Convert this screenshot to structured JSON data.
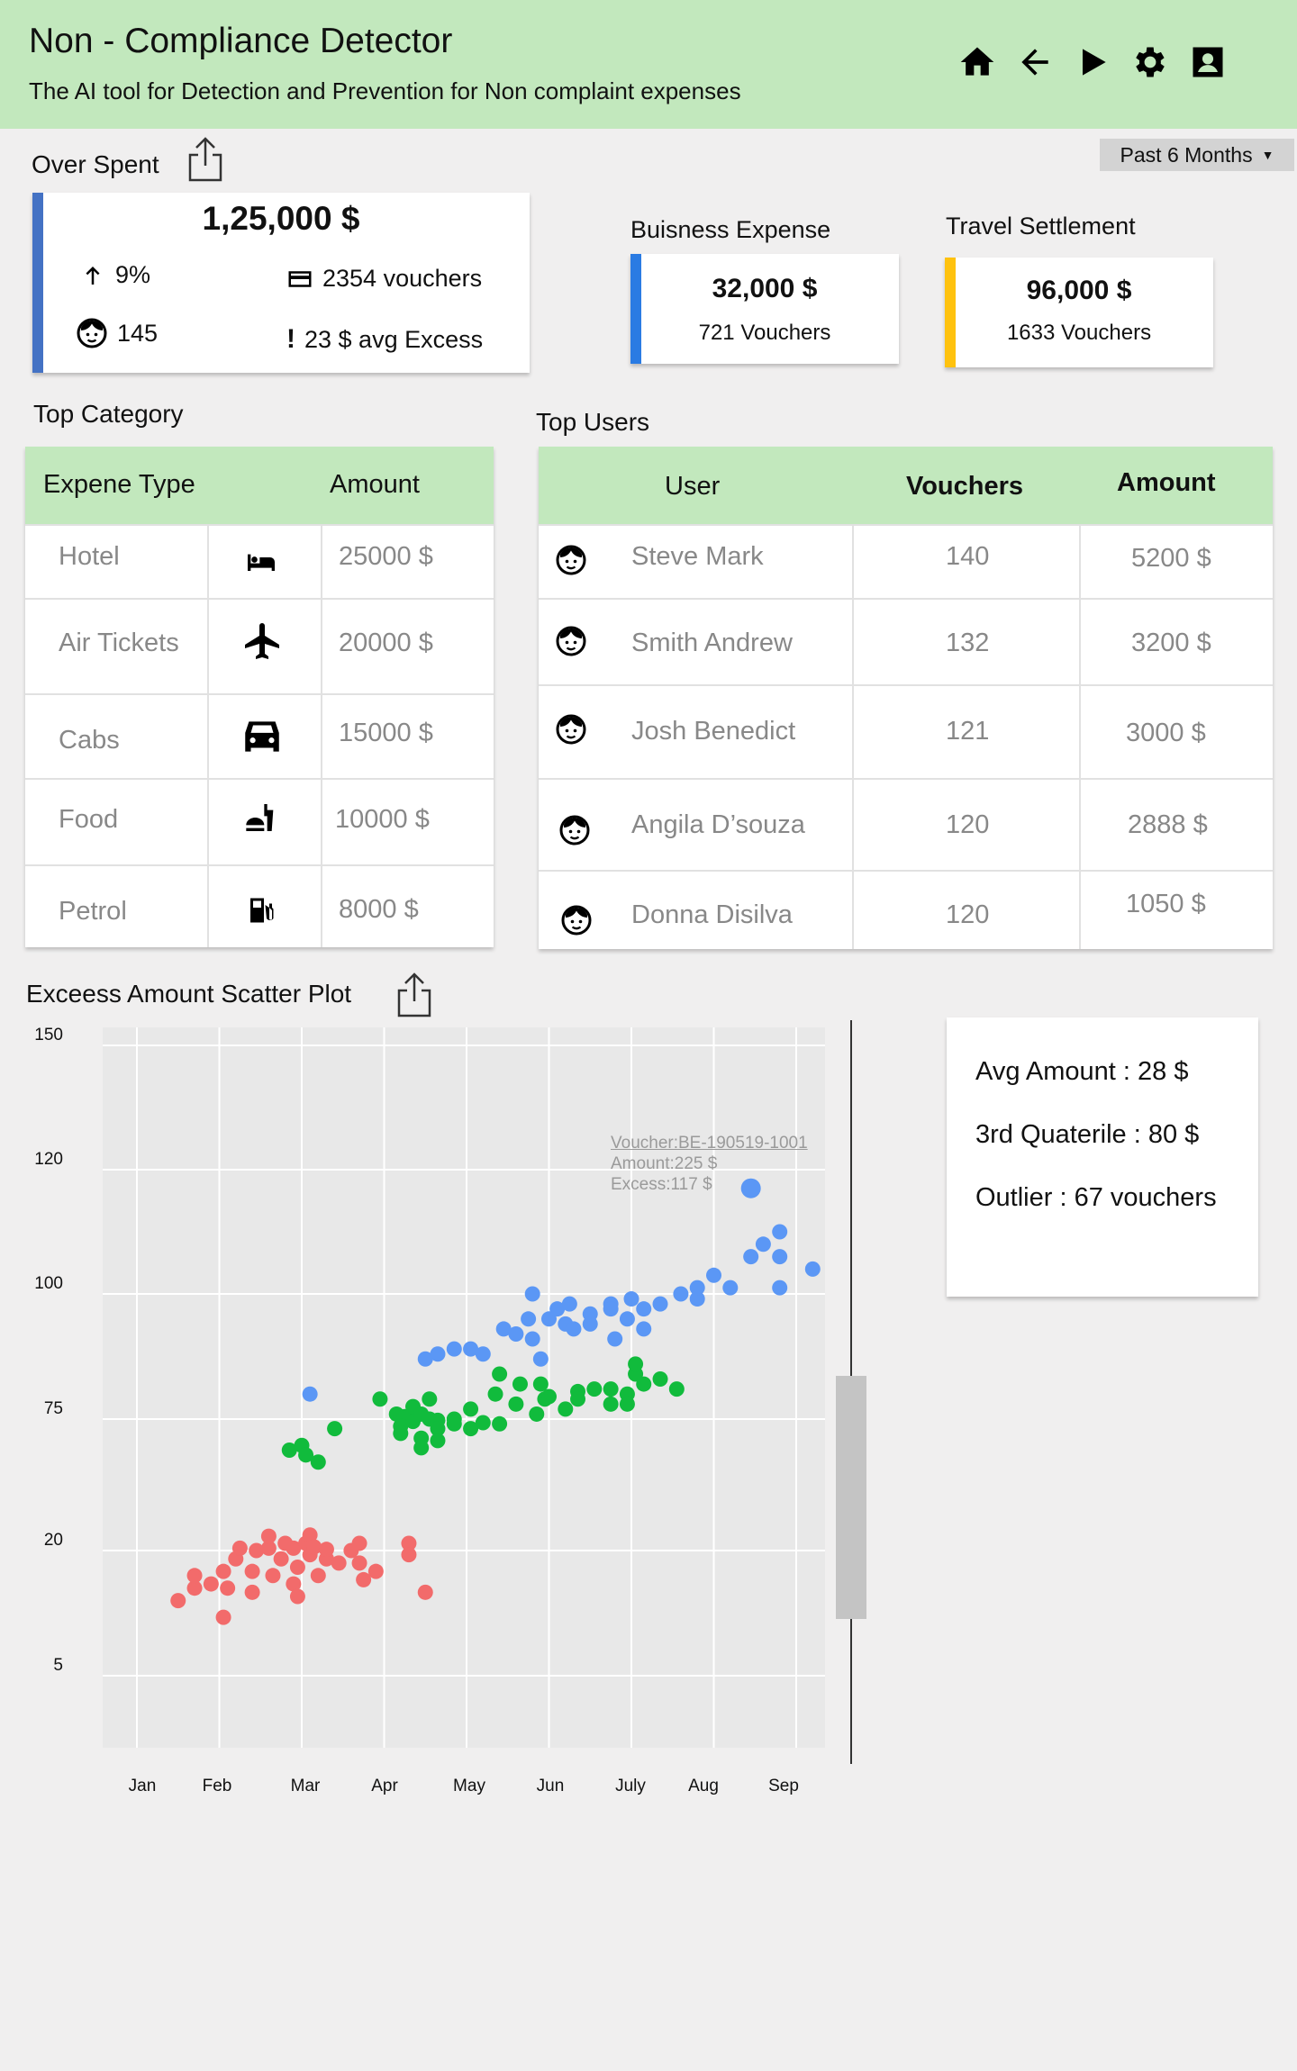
{
  "header": {
    "title": "Non - Compliance Detector",
    "subtitle": "The AI tool for Detection and Prevention for Non complaint expenses",
    "nav": [
      "home-icon",
      "back-arrow-icon",
      "play-icon",
      "gear-icon",
      "profile-icon"
    ]
  },
  "period": {
    "label": "Past 6 Months"
  },
  "overspent": {
    "label": "Over Spent",
    "total": "1,25,000 $",
    "growth": "9%",
    "vouchers": "2354 vouchers",
    "users": "145",
    "avg_excess": "23 $ avg Excess"
  },
  "business": {
    "label": "Buisness Expense",
    "amount": "32,000 $",
    "vouchers": "721 Vouchers",
    "color": "#2a7be3"
  },
  "travel": {
    "label": "Travel Settlement",
    "amount": "96,000 $",
    "vouchers": "1633 Vouchers",
    "color": "#ffc20e"
  },
  "top_category": {
    "label": "Top Category",
    "headers": [
      "Expene Type",
      "Amount"
    ],
    "rows": [
      {
        "type": "Hotel",
        "icon": "hotel-icon",
        "amount": "25000 $"
      },
      {
        "type": "Air Tickets",
        "icon": "airplane-icon",
        "amount": "20000 $"
      },
      {
        "type": "Cabs",
        "icon": "car-icon",
        "amount": "15000 $"
      },
      {
        "type": "Food",
        "icon": "food-icon",
        "amount": "10000 $"
      },
      {
        "type": "Petrol",
        "icon": "fuel-icon",
        "amount": "8000 $"
      }
    ]
  },
  "top_users": {
    "label": "Top Users",
    "headers": [
      "User",
      "Vouchers",
      "Amount"
    ],
    "rows": [
      {
        "name": "Steve Mark",
        "vouchers": "140",
        "amount": "5200 $"
      },
      {
        "name": "Smith Andrew",
        "vouchers": "132",
        "amount": "3200 $"
      },
      {
        "name": "Josh Benedict",
        "vouchers": "121",
        "amount": "3000 $"
      },
      {
        "name": "Angila D’souza",
        "vouchers": "120",
        "amount": "2888 $"
      },
      {
        "name": "Donna Disilva",
        "vouchers": "120",
        "amount": "1050 $"
      }
    ]
  },
  "scatter": {
    "label": "Exceess Amount Scatter Plot",
    "tooltip": {
      "voucher": "Voucher:BE-190519-1001",
      "amount": "Amount:225 $",
      "excess": "Excess:117 $"
    }
  },
  "summary": {
    "avg": "Avg Amount : 28 $",
    "quartile": "3rd Quaterile : 80 $",
    "outlier": "Outlier : 67 vouchers"
  },
  "chart_data": {
    "type": "scatter",
    "title": "Exceess Amount Scatter Plot",
    "xlabel": "",
    "ylabel": "",
    "x_categories": [
      "Jan",
      "Feb",
      "Mar",
      "Apr",
      "May",
      "Jun",
      "July",
      "Aug",
      "Sep"
    ],
    "y_ticks": [
      "150",
      "120",
      "100",
      "75",
      "20",
      "5"
    ],
    "grid": true,
    "series": [
      {
        "color": "#f26b6b",
        "points": [
          [
            0.5,
            14
          ],
          [
            0.7,
            15.5
          ],
          [
            0.7,
            17
          ],
          [
            0.9,
            16
          ],
          [
            1.05,
            17.5
          ],
          [
            1.05,
            12
          ],
          [
            1.1,
            15.5
          ],
          [
            1.2,
            19
          ],
          [
            1.25,
            21
          ],
          [
            1.4,
            15
          ],
          [
            1.4,
            17.5
          ],
          [
            1.45,
            20
          ],
          [
            1.6,
            21
          ],
          [
            1.6,
            26
          ],
          [
            1.65,
            17
          ],
          [
            1.75,
            19
          ],
          [
            1.8,
            23
          ],
          [
            1.9,
            16
          ],
          [
            1.9,
            21
          ],
          [
            1.95,
            18
          ],
          [
            1.95,
            14.5
          ],
          [
            2.05,
            23
          ],
          [
            2.1,
            26.5
          ],
          [
            2.1,
            19.5
          ],
          [
            2.15,
            21.5
          ],
          [
            2.2,
            17
          ],
          [
            2.3,
            19
          ],
          [
            2.3,
            20.5
          ],
          [
            2.45,
            18.5
          ],
          [
            2.6,
            20
          ],
          [
            2.7,
            23
          ],
          [
            2.7,
            18.5
          ],
          [
            2.75,
            16.5
          ],
          [
            2.9,
            17.5
          ],
          [
            3.3,
            23
          ],
          [
            3.3,
            19.5
          ],
          [
            3.5,
            15
          ]
        ]
      },
      {
        "color": "#11bb3c",
        "points": [
          [
            1.85,
            62
          ],
          [
            2.0,
            64
          ],
          [
            2.05,
            60
          ],
          [
            2.2,
            57
          ],
          [
            2.4,
            71
          ],
          [
            2.95,
            79
          ],
          [
            3.15,
            76
          ],
          [
            3.25,
            75.5
          ],
          [
            3.2,
            72
          ],
          [
            3.2,
            69
          ],
          [
            3.35,
            77.5
          ],
          [
            3.35,
            74
          ],
          [
            3.45,
            76
          ],
          [
            3.55,
            79
          ],
          [
            3.55,
            75
          ],
          [
            3.65,
            74.5
          ],
          [
            3.65,
            71
          ],
          [
            3.45,
            67
          ],
          [
            3.45,
            63
          ],
          [
            3.65,
            66
          ],
          [
            3.85,
            75
          ],
          [
            3.85,
            73
          ],
          [
            4.05,
            77
          ],
          [
            4.05,
            71
          ],
          [
            4.2,
            73.5
          ],
          [
            4.4,
            73
          ],
          [
            4.35,
            80
          ],
          [
            4.4,
            84
          ],
          [
            4.65,
            82
          ],
          [
            4.6,
            78
          ],
          [
            4.95,
            79
          ],
          [
            4.85,
            76
          ],
          [
            4.9,
            82
          ],
          [
            5.0,
            79.5
          ],
          [
            5.2,
            77
          ],
          [
            5.35,
            80.5
          ],
          [
            5.35,
            79
          ],
          [
            5.55,
            81
          ],
          [
            5.75,
            81
          ],
          [
            5.75,
            78
          ],
          [
            5.95,
            80
          ],
          [
            5.95,
            78
          ],
          [
            6.05,
            84
          ],
          [
            6.05,
            86
          ],
          [
            6.15,
            82
          ],
          [
            6.35,
            83
          ],
          [
            6.55,
            81
          ]
        ]
      },
      {
        "color": "#5b97f5",
        "points": [
          [
            2.1,
            80
          ],
          [
            3.5,
            87
          ],
          [
            3.65,
            88
          ],
          [
            3.85,
            89
          ],
          [
            4.05,
            89
          ],
          [
            4.2,
            88
          ],
          [
            4.45,
            93
          ],
          [
            4.6,
            92
          ],
          [
            4.75,
            95
          ],
          [
            4.8,
            100
          ],
          [
            4.8,
            91
          ],
          [
            4.9,
            87
          ],
          [
            5.0,
            95
          ],
          [
            5.1,
            97
          ],
          [
            5.2,
            94
          ],
          [
            5.25,
            98
          ],
          [
            5.3,
            93
          ],
          [
            5.5,
            96
          ],
          [
            5.5,
            94
          ],
          [
            5.75,
            98
          ],
          [
            5.75,
            97
          ],
          [
            5.8,
            91
          ],
          [
            5.95,
            95
          ],
          [
            6.0,
            99
          ],
          [
            6.15,
            93
          ],
          [
            6.15,
            97
          ],
          [
            6.35,
            98
          ],
          [
            6.6,
            100
          ],
          [
            6.8,
            99
          ],
          [
            6.8,
            101
          ],
          [
            7.0,
            103
          ],
          [
            7.2,
            101
          ],
          [
            7.45,
            106
          ],
          [
            7.6,
            108
          ],
          [
            7.8,
            110
          ],
          [
            7.8,
            101
          ],
          [
            7.8,
            106
          ],
          [
            8.2,
            104
          ]
        ]
      },
      {
        "color": "#5b97f5",
        "points": [
          [
            7.45,
            117
          ]
        ]
      }
    ]
  }
}
